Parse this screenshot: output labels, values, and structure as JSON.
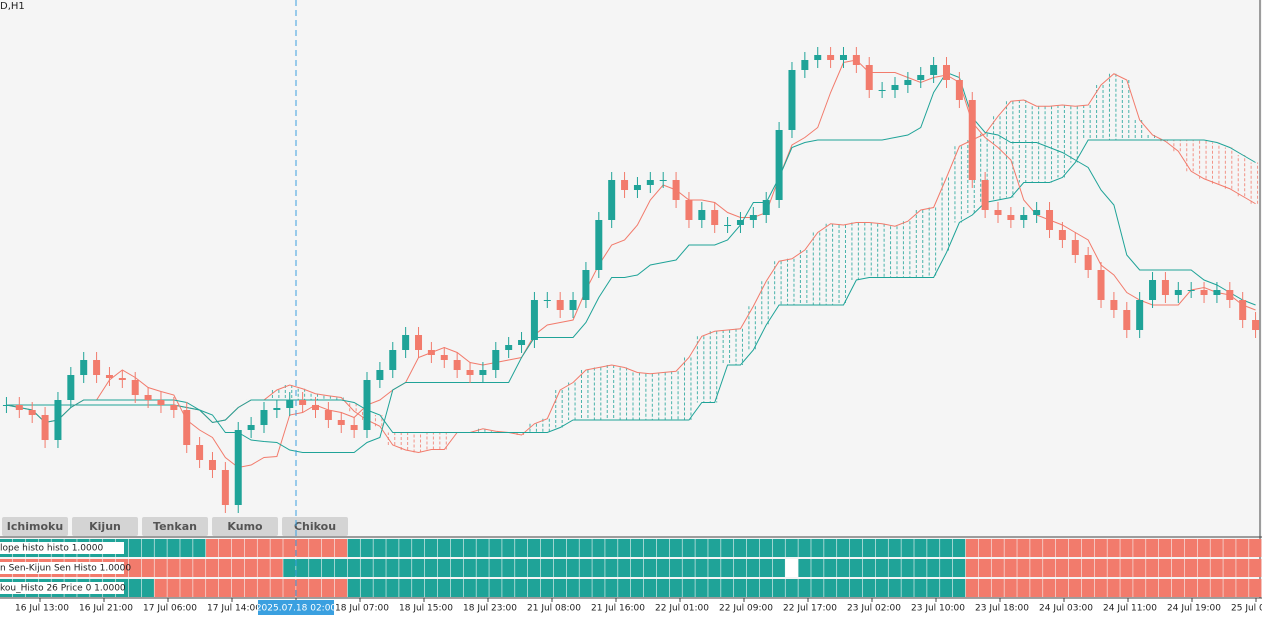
{
  "symbol_label": "D,H1",
  "buttons": [
    "Ichimoku",
    "Kijun",
    "Tenkan",
    "Kumo",
    "Chikou"
  ],
  "price": {
    "ylim": [
      0,
      515
    ],
    "closes": [
      110,
      105,
      100,
      75,
      115,
      140,
      155,
      140,
      137,
      135,
      120,
      115,
      110,
      105,
      70,
      55,
      45,
      10,
      85,
      90,
      105,
      107,
      115,
      110,
      105,
      95,
      90,
      85,
      135,
      145,
      165,
      180,
      165,
      160,
      155,
      145,
      140,
      145,
      165,
      170,
      175,
      215,
      215,
      205,
      215,
      245,
      295,
      335,
      325,
      330,
      335,
      335,
      315,
      295,
      305,
      290,
      290,
      295,
      300,
      315,
      385,
      445,
      455,
      460,
      455,
      460,
      450,
      425,
      425,
      430,
      435,
      440,
      450,
      435,
      415,
      335,
      305,
      300,
      295,
      300,
      305,
      285,
      275,
      260,
      245,
      215,
      205,
      185,
      215,
      235,
      220,
      225,
      225,
      220,
      225,
      215,
      195,
      185
    ],
    "up_color": "#1fa398",
    "down_color": "#f27b6c"
  },
  "histo_rows": [
    {
      "label": "lope histo histo  1.0000",
      "runs": [
        {
          "state": "up",
          "count": 16
        },
        {
          "state": "down",
          "count": 11
        },
        {
          "state": "up",
          "count": 48
        },
        {
          "state": "down",
          "count": 23
        }
      ]
    },
    {
      "label": "n Sen-Kijun Sen Histo 1.0000",
      "runs": [
        {
          "state": "down",
          "count": 22
        },
        {
          "state": "up",
          "count": 39
        },
        {
          "state": "flat",
          "count": 1
        },
        {
          "state": "up",
          "count": 13
        },
        {
          "state": "down",
          "count": 23
        }
      ]
    },
    {
      "label": "kou_Histo 26 Price 0  1.0000",
      "runs": [
        {
          "state": "up",
          "count": 12
        },
        {
          "state": "down",
          "count": 15
        },
        {
          "state": "up",
          "count": 48
        },
        {
          "state": "down",
          "count": 23
        }
      ]
    }
  ],
  "time_labels": [
    "16 Jul 13:00",
    "16 Jul 21:00",
    "17 Jul 06:00",
    "17 Jul 14:00",
    "2025.07.18 02:00",
    "18 Jul 07:00",
    "18 Jul 15:00",
    "18 Jul 23:00",
    "21 Jul 08:00",
    "21 Jul 16:00",
    "22 Jul 01:00",
    "22 Jul 09:00",
    "22 Jul 17:00",
    "23 Jul 02:00",
    "23 Jul 10:00",
    "23 Jul 18:00",
    "24 Jul 03:00",
    "24 Jul 11:00",
    "24 Jul 19:00",
    "25 Jul 0"
  ],
  "crosshair_label_index": 4
}
